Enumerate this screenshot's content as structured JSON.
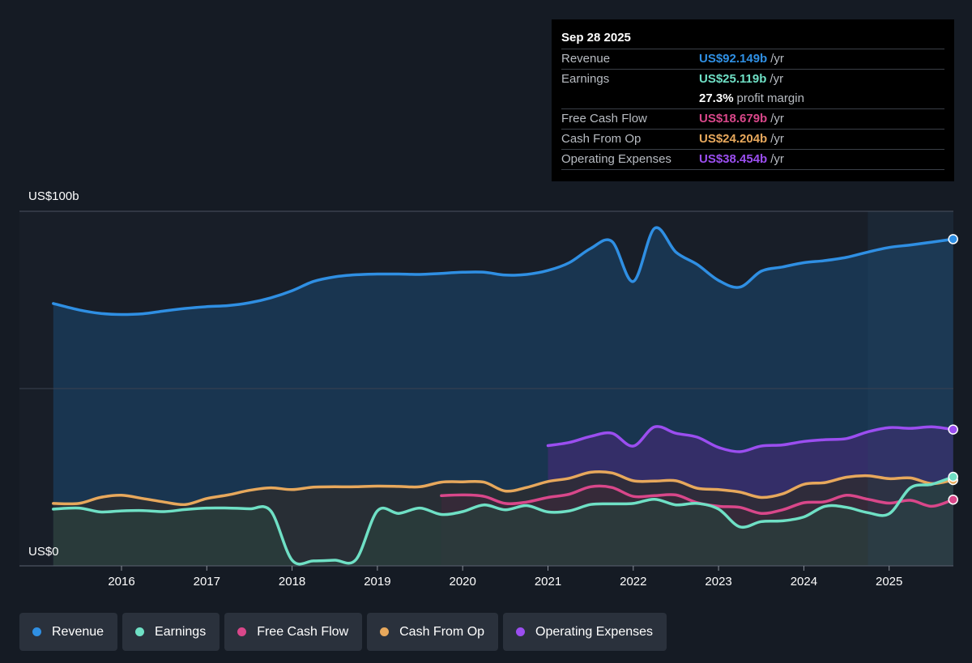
{
  "chart_data": {
    "type": "line",
    "y_top_label": "US$100b",
    "y_bottom_label": "US$0",
    "ylim": [
      0,
      100
    ],
    "xlim": [
      2015.2,
      2025.75
    ],
    "x_ticks": [
      2016,
      2017,
      2018,
      2019,
      2020,
      2021,
      2022,
      2023,
      2024,
      2025
    ],
    "x_tick_labels": [
      "2016",
      "2017",
      "2018",
      "2019",
      "2020",
      "2021",
      "2022",
      "2023",
      "2024",
      "2025"
    ],
    "forecast_start": 2024.75,
    "series": [
      {
        "name": "Revenue",
        "color": "#2f8fe3",
        "fill": "#1a3a57",
        "x": [
          2015.2,
          2015.5,
          2015.75,
          2016.0,
          2016.25,
          2016.5,
          2016.75,
          2017.0,
          2017.25,
          2017.5,
          2017.75,
          2018.0,
          2018.25,
          2018.5,
          2018.75,
          2019.0,
          2019.25,
          2019.5,
          2019.75,
          2020.0,
          2020.25,
          2020.5,
          2020.75,
          2021.0,
          2021.25,
          2021.5,
          2021.75,
          2022.0,
          2022.25,
          2022.5,
          2022.75,
          2023.0,
          2023.25,
          2023.5,
          2023.75,
          2024.0,
          2024.25,
          2024.5,
          2024.75,
          2025.0,
          2025.25,
          2025.5,
          2025.75
        ],
        "y": [
          74,
          72.2,
          71.2,
          70.9,
          71.1,
          71.9,
          72.6,
          73.1,
          73.4,
          74.2,
          75.6,
          77.6,
          80.2,
          81.5,
          82.1,
          82.3,
          82.3,
          82.2,
          82.5,
          82.8,
          82.8,
          82.0,
          82.2,
          83.3,
          85.5,
          89.5,
          91.5,
          80.2,
          95.2,
          88.5,
          85.0,
          80.5,
          78.6,
          83.1,
          84.3,
          85.5,
          86.1,
          87.0,
          88.5,
          89.8,
          90.5,
          91.3,
          92.149
        ]
      },
      {
        "name": "Earnings",
        "color": "#6fe0c5",
        "fill": "#2a3f3c",
        "x": [
          2015.2,
          2015.5,
          2015.75,
          2016.0,
          2016.25,
          2016.5,
          2016.75,
          2017.0,
          2017.25,
          2017.5,
          2017.75,
          2018.0,
          2018.25,
          2018.5,
          2018.75,
          2019.0,
          2019.25,
          2019.5,
          2019.75,
          2020.0,
          2020.25,
          2020.5,
          2020.75,
          2021.0,
          2021.25,
          2021.5,
          2021.75,
          2022.0,
          2022.25,
          2022.5,
          2022.75,
          2023.0,
          2023.25,
          2023.5,
          2023.75,
          2024.0,
          2024.25,
          2024.5,
          2024.75,
          2025.0,
          2025.25,
          2025.5,
          2025.75
        ],
        "y": [
          16,
          16.3,
          15.2,
          15.5,
          15.6,
          15.3,
          15.9,
          16.3,
          16.3,
          16.1,
          15.5,
          1.6,
          1.4,
          1.6,
          1.8,
          15.5,
          14.8,
          16.3,
          14.5,
          15.3,
          17.2,
          15.8,
          17.0,
          15.2,
          15.5,
          17.3,
          17.5,
          17.6,
          18.8,
          17.2,
          17.6,
          16.0,
          11.0,
          12.5,
          12.7,
          13.8,
          16.8,
          16.5,
          15.0,
          14.7,
          22.0,
          23.0,
          25.119
        ]
      },
      {
        "name": "Free Cash Flow",
        "color": "#d9478a",
        "fill": "#3a2a3a",
        "x": [
          2019.75,
          2020.0,
          2020.25,
          2020.5,
          2020.75,
          2021.0,
          2021.25,
          2021.5,
          2021.75,
          2022.0,
          2022.25,
          2022.5,
          2022.75,
          2023.0,
          2023.25,
          2023.5,
          2023.75,
          2024.0,
          2024.25,
          2024.5,
          2024.75,
          2025.0,
          2025.25,
          2025.5,
          2025.75
        ],
        "y": [
          19.8,
          20.0,
          19.6,
          17.6,
          18.0,
          19.3,
          20.2,
          22.3,
          22.1,
          19.6,
          19.8,
          20.0,
          17.8,
          16.8,
          16.5,
          14.8,
          15.8,
          17.8,
          18.1,
          19.9,
          18.8,
          17.7,
          18.5,
          16.8,
          18.679
        ]
      },
      {
        "name": "Cash From Op",
        "color": "#e7a85c",
        "fill": "#2d2c2c",
        "x": [
          2015.2,
          2015.5,
          2015.75,
          2016.0,
          2016.25,
          2016.5,
          2016.75,
          2017.0,
          2017.25,
          2017.5,
          2017.75,
          2018.0,
          2018.25,
          2018.5,
          2018.75,
          2019.0,
          2019.25,
          2019.5,
          2019.75,
          2020.0,
          2020.25,
          2020.5,
          2020.75,
          2021.0,
          2021.25,
          2021.5,
          2021.75,
          2022.0,
          2022.25,
          2022.5,
          2022.75,
          2023.0,
          2023.25,
          2023.5,
          2023.75,
          2024.0,
          2024.25,
          2024.5,
          2024.75,
          2025.0,
          2025.25,
          2025.5,
          2025.75
        ],
        "y": [
          17.6,
          17.6,
          19.3,
          19.9,
          19.0,
          18.0,
          17.3,
          19.0,
          20.0,
          21.3,
          22.0,
          21.5,
          22.2,
          22.3,
          22.3,
          22.5,
          22.4,
          22.3,
          23.6,
          23.7,
          23.6,
          21.1,
          22.1,
          23.8,
          24.7,
          26.4,
          26.2,
          24.0,
          23.9,
          24.0,
          21.9,
          21.5,
          20.8,
          19.3,
          20.3,
          23.0,
          23.5,
          25.0,
          25.4,
          24.6,
          24.8,
          23.2,
          24.204
        ]
      },
      {
        "name": "Operating Expenses",
        "color": "#9b4ef0",
        "fill": "#3e2c70",
        "x": [
          2021.0,
          2021.25,
          2021.5,
          2021.75,
          2022.0,
          2022.25,
          2022.5,
          2022.75,
          2023.0,
          2023.25,
          2023.5,
          2023.75,
          2024.0,
          2024.25,
          2024.5,
          2024.75,
          2025.0,
          2025.25,
          2025.5,
          2025.75
        ],
        "y": [
          33.9,
          34.8,
          36.5,
          37.4,
          33.8,
          39.2,
          37.4,
          36.3,
          33.4,
          32.2,
          33.8,
          34.1,
          35.1,
          35.6,
          35.9,
          37.8,
          39.0,
          38.8,
          39.2,
          38.454
        ]
      }
    ]
  },
  "tooltip": {
    "date": "Sep 28 2025",
    "revenue_label": "Revenue",
    "revenue_value": "US$92.149b",
    "revenue_unit": "/yr",
    "earnings_label": "Earnings",
    "earnings_value": "US$25.119b",
    "earnings_unit": "/yr",
    "margin_value": "27.3%",
    "margin_text": "profit margin",
    "fcf_label": "Free Cash Flow",
    "fcf_value": "US$18.679b",
    "fcf_unit": "/yr",
    "cfo_label": "Cash From Op",
    "cfo_value": "US$24.204b",
    "cfo_unit": "/yr",
    "opex_label": "Operating Expenses",
    "opex_value": "US$38.454b",
    "opex_unit": "/yr"
  },
  "legend": [
    {
      "label": "Revenue",
      "color": "#2f8fe3"
    },
    {
      "label": "Earnings",
      "color": "#6fe0c5"
    },
    {
      "label": "Free Cash Flow",
      "color": "#d9478a"
    },
    {
      "label": "Cash From Op",
      "color": "#e7a85c"
    },
    {
      "label": "Operating Expenses",
      "color": "#9b4ef0"
    }
  ]
}
